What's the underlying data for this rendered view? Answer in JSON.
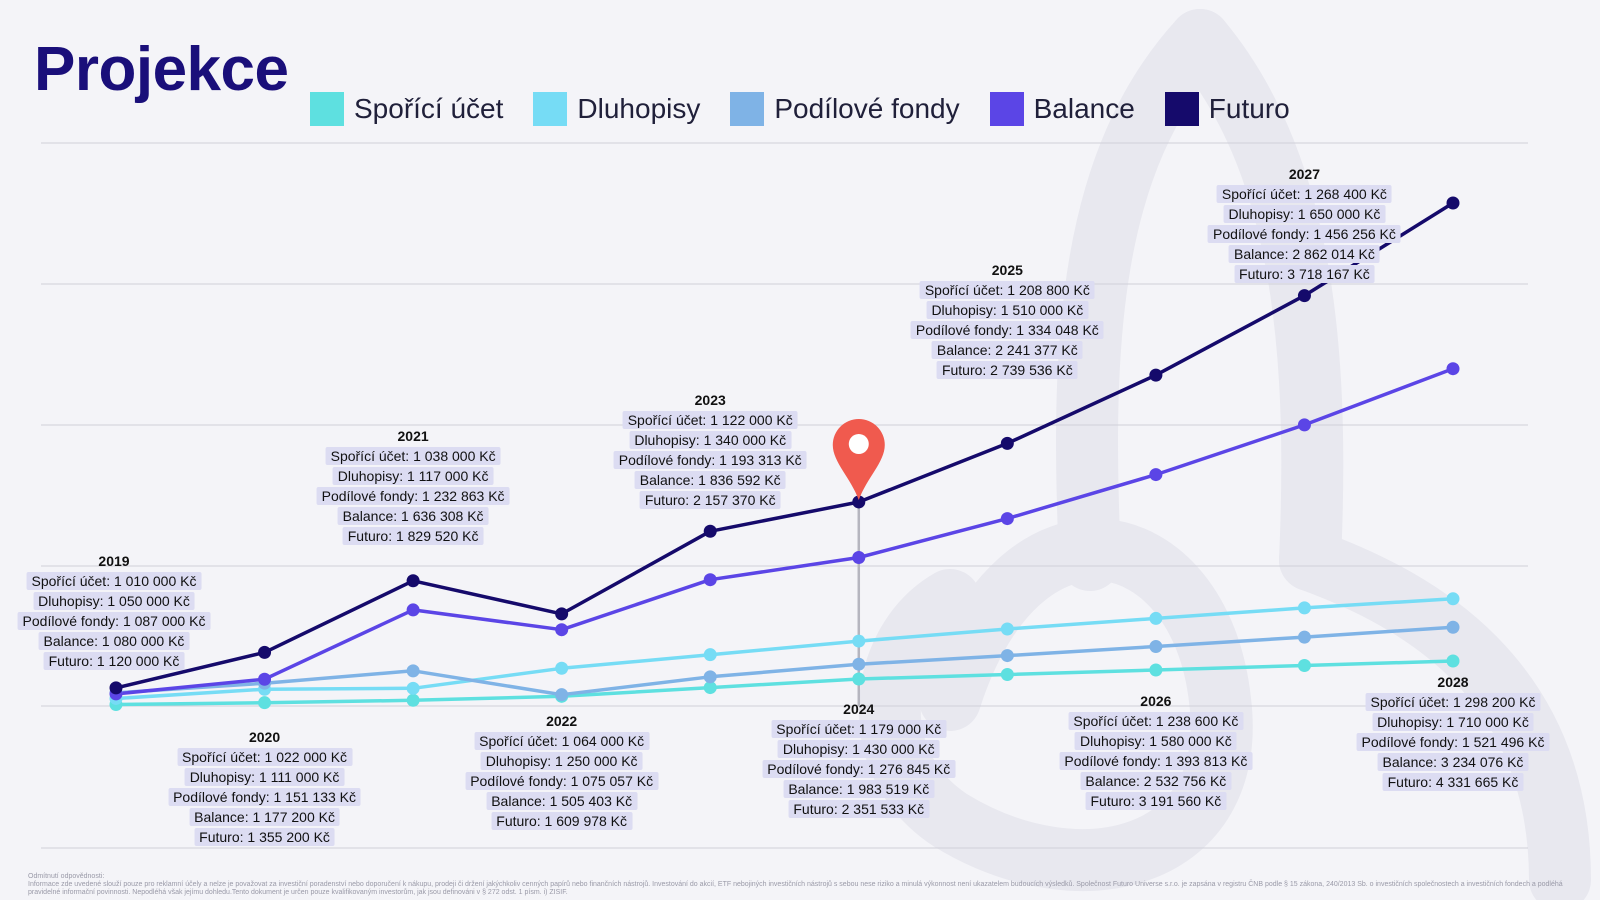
{
  "title": "Projekce",
  "disclaimer": {
    "heading": "Odmítnutí odpovědnosti:",
    "text": "Informace zde uvedené slouží pouze pro reklamní účely a nelze je považovat za investiční poradenství nebo doporučení k nákupu, prodeji či držení jakýchkoliv cenných papírů nebo finančních nástrojů. Investování do akcií, ETF nebojiných investičních nástrojů s sebou nese riziko a minulá výkonnost není ukazatelem budoucích výsledků. Společnost Futuro Universe s.r.o. je zapsána v registru ČNB podle § 15 zákona, 240/2013 Sb. o investičních společnostech a investičních fondech a podléhá pravidelné informační povinnosti. Nepodléhá však jejímu dohledu.Tento dokument je určen pouze kvalifikovaným investorům, jak jsou definováni v § 272 odst. 1 písm. i) ZISIF."
  },
  "colors": {
    "title": "#1a0f7a",
    "marker": "#f05a4e",
    "label_bg": "#dcdcf2"
  },
  "chart_data": {
    "type": "line",
    "x": [
      2019,
      2020,
      2021,
      2022,
      2023,
      2024,
      2025,
      2026,
      2027,
      2028
    ],
    "marker_year": 2024,
    "series": [
      {
        "name": "Spořící účet",
        "color": "#5ee0e0",
        "values": [
          1010000,
          1022000,
          1038000,
          1064000,
          1122000,
          1179000,
          1208800,
          1238600,
          1268400,
          1298200
        ]
      },
      {
        "name": "Dluhopisy",
        "color": "#76dcf5",
        "values": [
          1050000,
          1111000,
          1117000,
          1250000,
          1340000,
          1430000,
          1510000,
          1580000,
          1650000,
          1710000
        ]
      },
      {
        "name": "Podílové fondy",
        "color": "#7fb3e6",
        "values": [
          1087000,
          1151133,
          1232863,
          1075057,
          1193313,
          1276845,
          1334048,
          1393813,
          1456256,
          1521496
        ]
      },
      {
        "name": "Balance",
        "color": "#5b45e6",
        "values": [
          1080000,
          1177200,
          1636308,
          1505403,
          1836592,
          1983519,
          2241377,
          2532756,
          2862014,
          3234076
        ]
      },
      {
        "name": "Futuro",
        "color": "#150a6b",
        "values": [
          1120000,
          1355200,
          1829520,
          1609978,
          2157370,
          2351533,
          2739536,
          3191560,
          3718167,
          4331665
        ]
      }
    ],
    "labels": [
      {
        "year": "2019",
        "lines": [
          "Spořící účet: 1 010 000 Kč",
          "Dluhopisy: 1 050 000 Kč",
          "Podílové fondy: 1 087 000 Kč",
          "Balance: 1 080 000 Kč",
          "Futuro: 1 120 000 Kč"
        ]
      },
      {
        "year": "2020",
        "lines": [
          "Spořící účet: 1 022 000 Kč",
          "Dluhopisy: 1 111 000 Kč",
          "Podílové fondy: 1 151 133 Kč",
          "Balance: 1 177 200 Kč",
          "Futuro: 1 355 200 Kč"
        ]
      },
      {
        "year": "2021",
        "lines": [
          "Spořící účet: 1 038 000 Kč",
          "Dluhopisy: 1 117 000 Kč",
          "Podílové fondy: 1 232 863 Kč",
          "Balance: 1 636 308 Kč",
          "Futuro: 1 829 520 Kč"
        ]
      },
      {
        "year": "2022",
        "lines": [
          "Spořící účet: 1 064 000 Kč",
          "Dluhopisy: 1 250 000 Kč",
          "Podílové fondy: 1 075 057 Kč",
          "Balance: 1 505 403 Kč",
          "Futuro: 1 609 978 Kč"
        ]
      },
      {
        "year": "2023",
        "lines": [
          "Spořící účet: 1 122 000 Kč",
          "Dluhopisy: 1 340 000 Kč",
          "Podílové fondy: 1 193 313 Kč",
          "Balance: 1 836 592 Kč",
          "Futuro: 2 157 370 Kč"
        ]
      },
      {
        "year": "2024",
        "lines": [
          "Spořící účet: 1 179 000 Kč",
          "Dluhopisy: 1 430 000 Kč",
          "Podílové fondy: 1 276 845 Kč",
          "Balance: 1 983 519 Kč",
          "Futuro: 2 351 533 Kč"
        ]
      },
      {
        "year": "2025",
        "lines": [
          "Spořící účet: 1 208 800 Kč",
          "Dluhopisy: 1 510 000 Kč",
          "Podílové fondy: 1 334 048 Kč",
          "Balance: 2 241 377 Kč",
          "Futuro: 2 739 536 Kč"
        ]
      },
      {
        "year": "2026",
        "lines": [
          "Spořící účet: 1 238 600 Kč",
          "Dluhopisy: 1 580 000 Kč",
          "Podílové fondy: 1 393 813 Kč",
          "Balance: 2 532 756 Kč",
          "Futuro: 3 191 560 Kč"
        ]
      },
      {
        "year": "2027",
        "lines": [
          "Spořící účet: 1 268 400 Kč",
          "Dluhopisy: 1 650 000 Kč",
          "Podílové fondy: 1 456 256 Kč",
          "Balance: 2 862 014 Kč",
          "Futuro: 3 718 167 Kč"
        ]
      },
      {
        "year": "2028",
        "lines": [
          "Spořící účet: 1 298 200 Kč",
          "Dluhopisy: 1 710 000 Kč",
          "Podílové fondy: 1 521 496 Kč",
          "Balance: 3 234 076 Kč",
          "Futuro: 4 331 665 Kč"
        ]
      }
    ],
    "grid": true,
    "legend_position": "top"
  }
}
